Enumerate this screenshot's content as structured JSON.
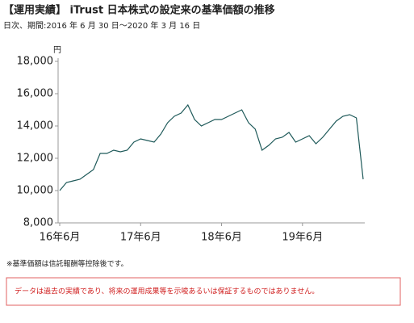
{
  "chart_data": {
    "type": "line",
    "title": "【運用実績】 iTrust 日本株式の設定来の基準価額の推移",
    "subtitle": "日次、期間:2016 年 6 月 30 日～2020 年 3 月 16 日",
    "y_unit": "円",
    "note": "※基準価額は信託報酬等控除後です。",
    "disclaimer": "データは過去の実績であり、将来の運用成果等を示唆あるいは保証するものではありません。",
    "x": [
      "2016-06",
      "2016-07",
      "2016-08",
      "2016-09",
      "2016-10",
      "2016-11",
      "2016-12",
      "2017-01",
      "2017-02",
      "2017-03",
      "2017-04",
      "2017-05",
      "2017-06",
      "2017-07",
      "2017-08",
      "2017-09",
      "2017-10",
      "2017-11",
      "2017-12",
      "2018-01",
      "2018-02",
      "2018-03",
      "2018-04",
      "2018-05",
      "2018-06",
      "2018-07",
      "2018-08",
      "2018-09",
      "2018-10",
      "2018-11",
      "2018-12",
      "2019-01",
      "2019-02",
      "2019-03",
      "2019-04",
      "2019-05",
      "2019-06",
      "2019-07",
      "2019-08",
      "2019-09",
      "2019-10",
      "2019-11",
      "2019-12",
      "2020-01",
      "2020-02",
      "2020-03"
    ],
    "series": [
      {
        "color": "#1f5a5a",
        "values": [
          10000,
          10500,
          10600,
          10700,
          11000,
          11300,
          12300,
          12300,
          12500,
          12400,
          12500,
          13000,
          13200,
          13100,
          13000,
          13500,
          14200,
          14600,
          14800,
          15300,
          14400,
          14000,
          14200,
          14400,
          14400,
          14600,
          14800,
          15000,
          14200,
          13800,
          12500,
          12800,
          13200,
          13300,
          13600,
          13000,
          13200,
          13400,
          12900,
          13300,
          13800,
          14300,
          14600,
          14700,
          14500,
          10700
        ]
      }
    ],
    "xticks": [
      {
        "value": "2016-06",
        "label": "16年6月"
      },
      {
        "value": "2017-06",
        "label": "17年6月"
      },
      {
        "value": "2018-06",
        "label": "18年6月"
      },
      {
        "value": "2019-06",
        "label": "19年6月"
      }
    ],
    "ylim": [
      8000,
      18000
    ],
    "yticks": [
      {
        "value": 8000,
        "label": "8,000"
      },
      {
        "value": 10000,
        "label": "10,000"
      },
      {
        "value": 12000,
        "label": "12,000"
      },
      {
        "value": 14000,
        "label": "14,000"
      },
      {
        "value": 16000,
        "label": "16,000"
      },
      {
        "value": 18000,
        "label": "18,000"
      }
    ]
  }
}
